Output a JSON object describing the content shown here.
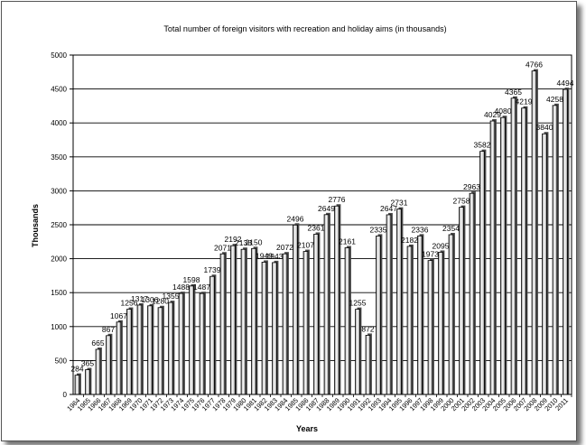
{
  "chart_data": {
    "type": "bar",
    "title": "Total number of foreign visitors with recreation and holiday aims (in thousands)",
    "xlabel": "Years",
    "ylabel": "Thousands",
    "ylim": [
      0,
      5000
    ],
    "yticks": [
      0,
      500,
      1000,
      1500,
      2000,
      2500,
      3000,
      3500,
      4000,
      4500,
      5000
    ],
    "grid": true,
    "legend": "none",
    "categories": [
      "1964",
      "1965",
      "1966",
      "1967",
      "1968",
      "1969",
      "1970",
      "1971",
      "1972",
      "1973",
      "1974",
      "1975",
      "1976",
      "1977",
      "1978",
      "1979",
      "1980",
      "1981",
      "1982",
      "1983",
      "1984",
      "1985",
      "1986",
      "1987",
      "1988",
      "1989",
      "1990",
      "1991",
      "1992",
      "1993",
      "1994",
      "1995",
      "1996",
      "1997",
      "1998",
      "1999",
      "2000",
      "2001",
      "2002",
      "2003",
      "2004",
      "2005",
      "2006",
      "2007",
      "2008",
      "2009",
      "2010",
      "2011"
    ],
    "values": [
      284,
      365,
      665,
      867,
      1067,
      1256,
      1317,
      1306,
      1280,
      1355,
      1488,
      1598,
      1487,
      1739,
      2071,
      2192,
      2138,
      2150,
      1949,
      1943,
      2072,
      2496,
      2107,
      2361,
      2649,
      2776,
      2161,
      1255,
      872,
      2335,
      2647,
      2731,
      2182,
      2336,
      1973,
      2095,
      2354,
      2758,
      2963,
      3582,
      4029,
      4080,
      4365,
      4219,
      4766,
      3840,
      4258,
      4494
    ],
    "labels": [
      "284",
      "365",
      "665",
      "867",
      "1067",
      "1256",
      "1317",
      "1306",
      "1280",
      "1355",
      "1488",
      "1598",
      "1487",
      "1739",
      "2071",
      "2192",
      "2138",
      "2150",
      "1949",
      "1943",
      "2072",
      "2496",
      "2107",
      "2361",
      "2649",
      "2776",
      "2161",
      "1255",
      "872",
      "2335",
      "2647",
      "2731",
      "2182",
      "2336",
      "1973",
      "2095",
      "2354",
      "2758",
      "2963",
      "3582",
      "4029",
      "4080",
      "4365",
      "4219",
      "4766",
      "3840",
      "4258",
      "4494"
    ],
    "colors": {
      "bar_light": "#ffffff",
      "bar_dark": "#8a8a8a",
      "bar_stroke": "#000000",
      "grid": "#000000",
      "background": "#ffffff"
    }
  }
}
